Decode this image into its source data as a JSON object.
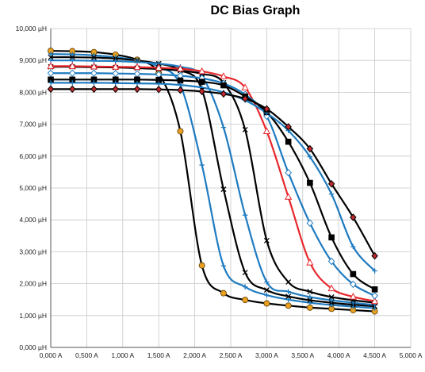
{
  "chart_data": {
    "type": "line",
    "title": "DC Bias Graph",
    "xlabel": "",
    "ylabel": "",
    "xlim": [
      0,
      5000
    ],
    "ylim": [
      0,
      10000
    ],
    "grid": true,
    "legend": "none",
    "x_ticks": [
      "0,000 A",
      "0,500 A",
      "1,000 A",
      "1,500 A",
      "2,000 A",
      "2,500 A",
      "3,000 A",
      "3,500 A",
      "4,000 A",
      "4,500 A",
      "5,000 A"
    ],
    "y_ticks": [
      "0,000 µH",
      "1,000 µH",
      "2,000 µH",
      "3,000 µH",
      "4,000 µH",
      "5,000 µH",
      "6,000 µH",
      "7,000 µH",
      "8,000 µH",
      "9,000 µH",
      "10,000 µH"
    ],
    "series": [
      {
        "color": "#000000",
        "marker": "circle",
        "marker_fill": "#E8A020",
        "x": [
          0,
          300,
          600,
          900,
          1200,
          1500,
          1800,
          2100,
          2400,
          2700,
          3000,
          3300,
          3600,
          3900,
          4200,
          4500
        ],
        "y": [
          9300,
          9290,
          9260,
          9180,
          9020,
          8600,
          6780,
          2570,
          1700,
          1490,
          1380,
          1310,
          1250,
          1210,
          1170,
          1130
        ]
      },
      {
        "color": "#1F7BC0",
        "marker": "plus",
        "marker_fill": "#1F7BC0",
        "x": [
          0,
          300,
          600,
          900,
          1200,
          1500,
          1800,
          2100,
          2400,
          2700,
          3000,
          3300,
          3600,
          3900,
          4200,
          4500
        ],
        "y": [
          9200,
          9190,
          9160,
          9100,
          9000,
          8800,
          8230,
          5720,
          2560,
          1900,
          1640,
          1500,
          1400,
          1330,
          1280,
          1230
        ]
      },
      {
        "color": "#000000",
        "marker": "x",
        "marker_fill": "#000000",
        "x": [
          0,
          300,
          600,
          900,
          1200,
          1500,
          1800,
          2100,
          2400,
          2700,
          3000,
          3300,
          3600,
          3900,
          4200,
          4500
        ],
        "y": [
          9100,
          9100,
          9090,
          9060,
          9000,
          8900,
          8700,
          8080,
          4960,
          2350,
          1800,
          1600,
          1480,
          1400,
          1340,
          1290
        ]
      },
      {
        "color": "#1F7BC0",
        "marker": "plus",
        "marker_fill": "#1F7BC0",
        "x": [
          0,
          300,
          600,
          900,
          1200,
          1500,
          1800,
          2100,
          2400,
          2700,
          3000,
          3300,
          3600,
          3900,
          4200,
          4500
        ],
        "y": [
          9000,
          9000,
          8990,
          8980,
          8950,
          8900,
          8800,
          8500,
          6900,
          4150,
          2050,
          1750,
          1580,
          1480,
          1400,
          1330
        ]
      },
      {
        "color": "#000000",
        "marker": "x",
        "marker_fill": "#000000",
        "x": [
          0,
          300,
          600,
          900,
          1200,
          1500,
          1800,
          2100,
          2400,
          2700,
          3000,
          3300,
          3600,
          3900,
          4200,
          4500
        ],
        "y": [
          8800,
          8800,
          8790,
          8780,
          8760,
          8730,
          8680,
          8580,
          8300,
          6830,
          3350,
          2050,
          1750,
          1580,
          1480,
          1400
        ]
      },
      {
        "color": "#E8272C",
        "marker": "triangle",
        "marker_fill": "#FFFFFF",
        "x": [
          0,
          300,
          600,
          900,
          1200,
          1500,
          1800,
          2100,
          2400,
          2700,
          3000,
          3300,
          3600,
          3900,
          4200,
          4500
        ],
        "y": [
          8820,
          8820,
          8810,
          8800,
          8790,
          8770,
          8740,
          8660,
          8500,
          8150,
          6780,
          4720,
          2660,
          1850,
          1590,
          1450
        ]
      },
      {
        "color": "#1F7BC0",
        "marker": "diamond",
        "marker_fill": "#FFFFFF",
        "x": [
          0,
          300,
          600,
          900,
          1200,
          1500,
          1800,
          2100,
          2400,
          2700,
          3000,
          3300,
          3600,
          3900,
          4200,
          4500
        ],
        "y": [
          8600,
          8600,
          8600,
          8590,
          8580,
          8560,
          8520,
          8440,
          8280,
          7930,
          7250,
          5480,
          3900,
          2700,
          1980,
          1620
        ]
      },
      {
        "color": "#000000",
        "marker": "square",
        "marker_fill": "#000000",
        "x": [
          0,
          300,
          600,
          900,
          1200,
          1500,
          1800,
          2100,
          2400,
          2700,
          3000,
          3300,
          3600,
          3900,
          4200,
          4500
        ],
        "y": [
          8400,
          8400,
          8400,
          8400,
          8400,
          8390,
          8370,
          8330,
          8220,
          7870,
          7380,
          6450,
          5160,
          3450,
          2300,
          1820
        ]
      },
      {
        "color": "#1F7BC0",
        "marker": "plus",
        "marker_fill": "#1F7BC0",
        "x": [
          0,
          300,
          600,
          900,
          1200,
          1500,
          1800,
          2100,
          2400,
          2700,
          3000,
          3300,
          3600,
          3900,
          4200,
          4500
        ],
        "y": [
          8300,
          8300,
          8300,
          8290,
          8280,
          8270,
          8230,
          8150,
          8000,
          7750,
          7350,
          6800,
          5980,
          4810,
          3160,
          2400
        ]
      },
      {
        "color": "#000000",
        "marker": "diamond",
        "marker_fill": "#C0282C",
        "x": [
          0,
          300,
          600,
          900,
          1200,
          1500,
          1800,
          2100,
          2400,
          2700,
          3000,
          3300,
          3600,
          3900,
          4200,
          4500
        ],
        "y": [
          8100,
          8100,
          8100,
          8100,
          8100,
          8090,
          8070,
          8030,
          7950,
          7800,
          7480,
          6920,
          6230,
          5130,
          4080,
          2870
        ]
      }
    ]
  }
}
